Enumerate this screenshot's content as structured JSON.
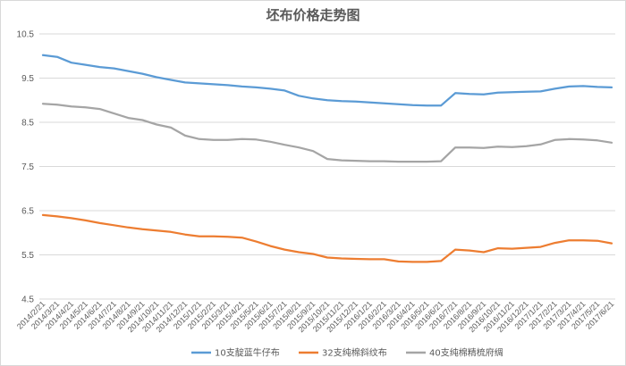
{
  "chart_data": {
    "type": "line",
    "title": "坯布价格走势图",
    "xlabel": "",
    "ylabel": "",
    "ylim": [
      4.5,
      10.5
    ],
    "yticks": [
      "4.5",
      "5.5",
      "6.5",
      "7.5",
      "8.5",
      "9.5",
      "10.5"
    ],
    "grid": "horizontal",
    "legend": "bottom",
    "x": [
      "2014/2/21",
      "2014/3/21",
      "2014/4/21",
      "2014/5/21",
      "2014/6/21",
      "2014/7/21",
      "2014/8/21",
      "2014/9/21",
      "2014/10/21",
      "2014/11/21",
      "2014/12/21",
      "2015/1/21",
      "2015/2/21",
      "2015/3/21",
      "2015/4/21",
      "2015/5/21",
      "2015/6/21",
      "2015/7/21",
      "2015/8/21",
      "2015/9/21",
      "2015/10/21",
      "2015/11/21",
      "2015/12/21",
      "2016/1/21",
      "2016/2/21",
      "2016/3/21",
      "2016/4/21",
      "2016/5/21",
      "2016/6/21",
      "2016/7/21",
      "2016/8/21",
      "2016/9/21",
      "2016/10/21",
      "2016/11/21",
      "2016/12/21",
      "2017/1/21",
      "2017/2/21",
      "2017/3/21",
      "2017/4/21",
      "2017/5/21",
      "2017/6/21"
    ],
    "series": [
      {
        "name": "10支靛蓝牛仔布",
        "color": "#5b9bd5",
        "values": [
          10.02,
          9.98,
          9.85,
          9.8,
          9.75,
          9.72,
          9.66,
          9.6,
          9.52,
          9.46,
          9.4,
          9.38,
          9.36,
          9.34,
          9.31,
          9.29,
          9.26,
          9.22,
          9.1,
          9.04,
          9.0,
          8.98,
          8.97,
          8.95,
          8.93,
          8.91,
          8.89,
          8.88,
          8.88,
          9.16,
          9.14,
          9.13,
          9.17,
          9.18,
          9.19,
          9.2,
          9.26,
          9.31,
          9.32,
          9.3,
          9.29
        ]
      },
      {
        "name": "32支纯棉斜纹布",
        "color": "#ed7d31",
        "values": [
          6.4,
          6.37,
          6.33,
          6.28,
          6.22,
          6.17,
          6.12,
          6.08,
          6.05,
          6.02,
          5.96,
          5.92,
          5.92,
          5.91,
          5.89,
          5.8,
          5.7,
          5.62,
          5.56,
          5.52,
          5.44,
          5.42,
          5.41,
          5.4,
          5.4,
          5.35,
          5.34,
          5.34,
          5.36,
          5.62,
          5.6,
          5.56,
          5.65,
          5.64,
          5.66,
          5.68,
          5.77,
          5.83,
          5.83,
          5.82,
          5.76
        ]
      },
      {
        "name": "40支纯棉精梳府绸",
        "color": "#a5a5a5",
        "values": [
          8.92,
          8.9,
          8.86,
          8.84,
          8.8,
          8.7,
          8.6,
          8.55,
          8.45,
          8.38,
          8.2,
          8.12,
          8.1,
          8.1,
          8.12,
          8.11,
          8.06,
          7.99,
          7.93,
          7.85,
          7.67,
          7.64,
          7.63,
          7.62,
          7.62,
          7.61,
          7.61,
          7.61,
          7.62,
          7.93,
          7.93,
          7.92,
          7.95,
          7.94,
          7.96,
          8.0,
          8.1,
          8.12,
          8.11,
          8.09,
          8.04
        ]
      }
    ]
  }
}
